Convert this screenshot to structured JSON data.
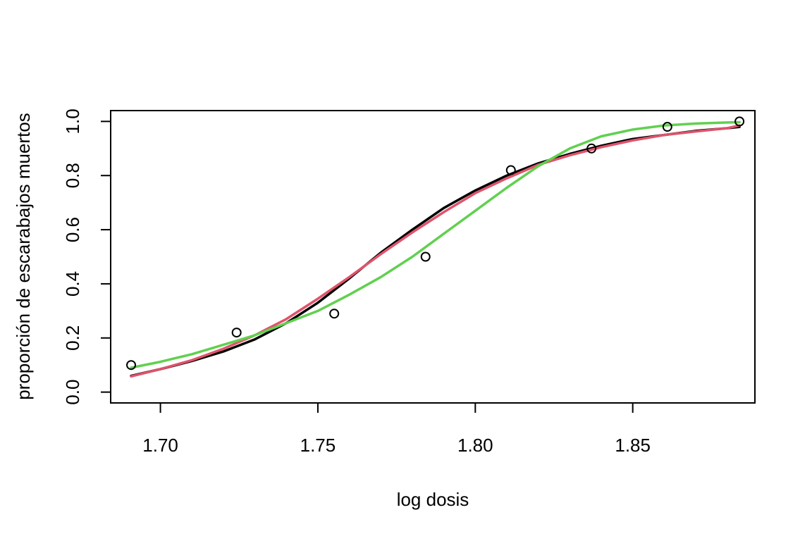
{
  "chart_data": {
    "type": "scatter",
    "title": "",
    "xlabel": "log dosis",
    "ylabel": "proporción de escarabajos muertos",
    "xlim": [
      1.6842,
      1.8888
    ],
    "ylim": [
      -0.04,
      1.04
    ],
    "xticks": [
      1.7,
      1.75,
      1.8,
      1.85
    ],
    "xtick_labels": [
      "1.70",
      "1.75",
      "1.80",
      "1.85"
    ],
    "yticks": [
      0.0,
      0.2,
      0.4,
      0.6,
      0.8,
      1.0
    ],
    "ytick_labels": [
      "0.0",
      "0.2",
      "0.4",
      "0.6",
      "0.8",
      "1.0"
    ],
    "grid": false,
    "points": {
      "x": [
        1.6907,
        1.7242,
        1.7552,
        1.7842,
        1.8113,
        1.8369,
        1.861,
        1.8839
      ],
      "y": [
        0.1,
        0.22,
        0.29,
        0.5,
        0.82,
        0.9,
        0.98,
        1.0
      ]
    },
    "series": [
      {
        "color": "#000000",
        "x": [
          1.6907,
          1.7,
          1.71,
          1.72,
          1.73,
          1.74,
          1.75,
          1.76,
          1.77,
          1.78,
          1.79,
          1.8,
          1.81,
          1.82,
          1.83,
          1.84,
          1.85,
          1.86,
          1.87,
          1.88,
          1.8839
        ],
        "y": [
          0.06,
          0.085,
          0.115,
          0.15,
          0.195,
          0.255,
          0.33,
          0.42,
          0.515,
          0.6,
          0.68,
          0.745,
          0.8,
          0.845,
          0.88,
          0.91,
          0.935,
          0.95,
          0.965,
          0.975,
          0.98
        ]
      },
      {
        "color": "#DF536B",
        "x": [
          1.6907,
          1.7,
          1.71,
          1.72,
          1.73,
          1.74,
          1.75,
          1.76,
          1.77,
          1.78,
          1.79,
          1.8,
          1.81,
          1.82,
          1.83,
          1.84,
          1.85,
          1.86,
          1.87,
          1.88,
          1.8839
        ],
        "y": [
          0.058,
          0.085,
          0.118,
          0.16,
          0.21,
          0.27,
          0.345,
          0.425,
          0.51,
          0.59,
          0.665,
          0.735,
          0.79,
          0.84,
          0.875,
          0.905,
          0.93,
          0.95,
          0.963,
          0.975,
          0.985
        ]
      },
      {
        "color": "#61D04F",
        "x": [
          1.6907,
          1.7,
          1.71,
          1.72,
          1.73,
          1.74,
          1.75,
          1.76,
          1.77,
          1.78,
          1.79,
          1.8,
          1.81,
          1.82,
          1.83,
          1.84,
          1.85,
          1.86,
          1.87,
          1.88,
          1.8839
        ],
        "y": [
          0.09,
          0.112,
          0.14,
          0.175,
          0.21,
          0.255,
          0.3,
          0.36,
          0.425,
          0.5,
          0.585,
          0.67,
          0.755,
          0.835,
          0.9,
          0.945,
          0.97,
          0.985,
          0.992,
          0.996,
          0.997
        ]
      }
    ]
  }
}
